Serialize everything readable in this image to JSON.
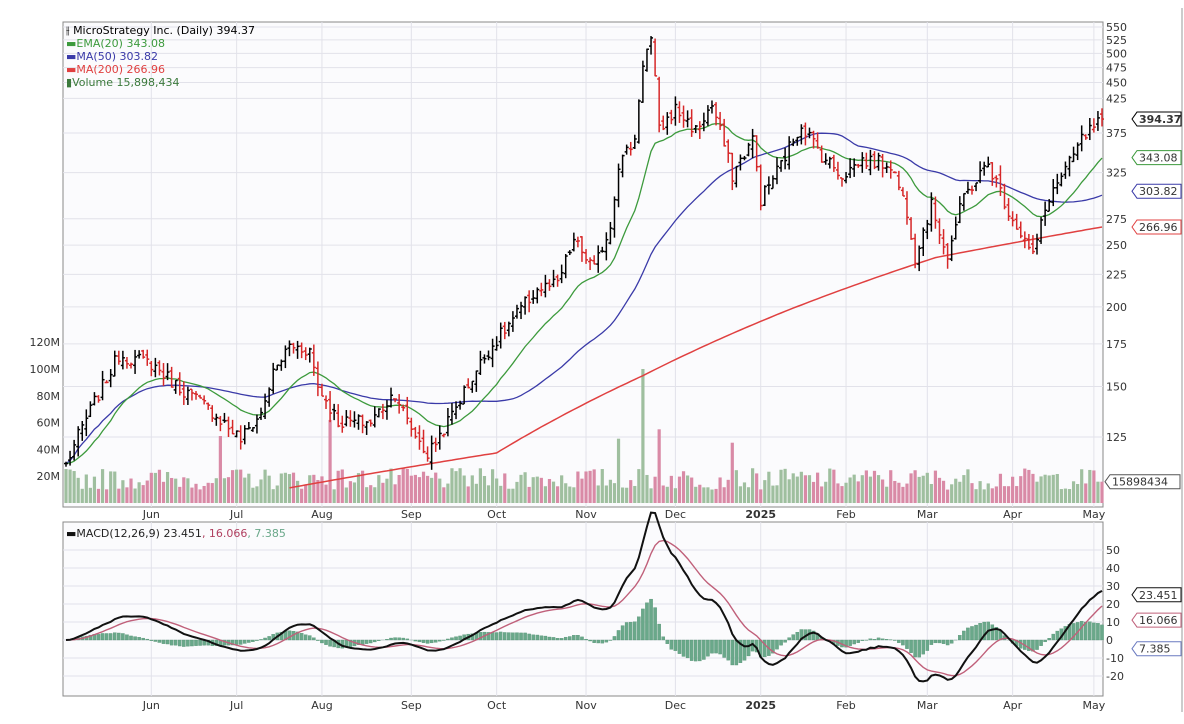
{
  "title": "MicroStrategy Inc. (Daily) 394.37",
  "legend": {
    "ema20": "EMA(20) 343.08",
    "ma50": "MA(50) 303.82",
    "ma200": "MA(200) 266.96",
    "volume": "Volume 15,898,434"
  },
  "macd_legend": {
    "label": "MACD(12,26,9) 23.451",
    "signal": ", 16.066",
    "hist": ", 7.385"
  },
  "colors": {
    "up": "#000000",
    "down": "#d62728",
    "ema20": "#3c9a3c",
    "ma50": "#3a3aa8",
    "ma200": "#e04040",
    "vol_up": "#9fbf9f",
    "vol_down": "#d98aa6",
    "macd": "#111111",
    "signal": "#c0607a",
    "hist": "#6aa88a"
  },
  "chart_data": {
    "type": "ohlc",
    "title": "MicroStrategy Inc. (Daily)",
    "price_ticks": [
      125,
      150,
      175,
      200,
      225,
      250,
      275,
      325,
      375,
      425,
      450,
      475,
      500,
      525,
      550
    ],
    "price_range": [
      106,
      560
    ],
    "scale": "log",
    "volume_ticks": [
      "20M",
      "40M",
      "60M",
      "80M",
      "100M",
      "120M"
    ],
    "volume_tick_values": [
      20,
      40,
      60,
      80,
      100,
      120
    ],
    "month_labels": [
      {
        "label": "Jun",
        "day": 21
      },
      {
        "label": "Jul",
        "day": 42
      },
      {
        "label": "Aug",
        "day": 63
      },
      {
        "label": "Sep",
        "day": 85
      },
      {
        "label": "Oct",
        "day": 106
      },
      {
        "label": "Nov",
        "day": 128
      },
      {
        "label": "Dec",
        "day": 150
      },
      {
        "label": "2025",
        "day": 171
      },
      {
        "label": "Feb",
        "day": 192
      },
      {
        "label": "Mar",
        "day": 212
      },
      {
        "label": "Apr",
        "day": 233
      },
      {
        "label": "May",
        "day": 253
      }
    ],
    "close_anchors": [
      [
        0,
        113
      ],
      [
        9,
        150
      ],
      [
        13,
        168
      ],
      [
        21,
        163
      ],
      [
        27,
        151
      ],
      [
        36,
        137
      ],
      [
        43,
        124
      ],
      [
        48,
        136
      ],
      [
        51,
        157
      ],
      [
        55,
        174
      ],
      [
        60,
        171
      ],
      [
        62,
        150
      ],
      [
        67,
        132
      ],
      [
        75,
        132
      ],
      [
        81,
        147
      ],
      [
        84,
        132
      ],
      [
        89,
        117
      ],
      [
        94,
        132
      ],
      [
        99,
        151
      ],
      [
        104,
        171
      ],
      [
        108,
        184
      ],
      [
        116,
        213
      ],
      [
        121,
        217
      ],
      [
        125,
        254
      ],
      [
        130,
        229
      ],
      [
        134,
        268
      ],
      [
        136,
        335
      ],
      [
        140,
        366
      ],
      [
        142,
        485
      ],
      [
        144,
        525
      ],
      [
        146,
        378
      ],
      [
        150,
        409
      ],
      [
        155,
        378
      ],
      [
        159,
        414
      ],
      [
        164,
        322
      ],
      [
        169,
        366
      ],
      [
        171,
        295
      ],
      [
        176,
        335
      ],
      [
        181,
        387
      ],
      [
        186,
        346
      ],
      [
        191,
        322
      ],
      [
        196,
        340
      ],
      [
        203,
        335
      ],
      [
        207,
        283
      ],
      [
        209,
        240
      ],
      [
        213,
        288
      ],
      [
        217,
        240
      ],
      [
        221,
        298
      ],
      [
        227,
        335
      ],
      [
        232,
        283
      ],
      [
        238,
        240
      ],
      [
        242,
        298
      ],
      [
        247,
        335
      ],
      [
        250,
        366
      ],
      [
        255,
        394.37
      ]
    ],
    "ma200_anchors": [
      [
        55,
        104
      ],
      [
        106,
        118
      ],
      [
        142,
        156
      ],
      [
        178,
        198
      ],
      [
        214,
        239
      ],
      [
        255,
        266.96
      ]
    ],
    "volume_spikes_m": [
      [
        38,
        50
      ],
      [
        65,
        62
      ],
      [
        136,
        48
      ],
      [
        142,
        100
      ],
      [
        164,
        45
      ],
      [
        146,
        55
      ]
    ],
    "last_values": {
      "close": "394.37",
      "ema20": "343.08",
      "ma50": "303.82",
      "ma200": "266.96",
      "volume": "15898434"
    },
    "macd": {
      "params": "12,26,9",
      "ticks": [
        -20,
        -10,
        0,
        10,
        20,
        30,
        40,
        50
      ],
      "last": {
        "macd": "23.451",
        "signal": "16.066",
        "hist": "7.385"
      }
    }
  }
}
